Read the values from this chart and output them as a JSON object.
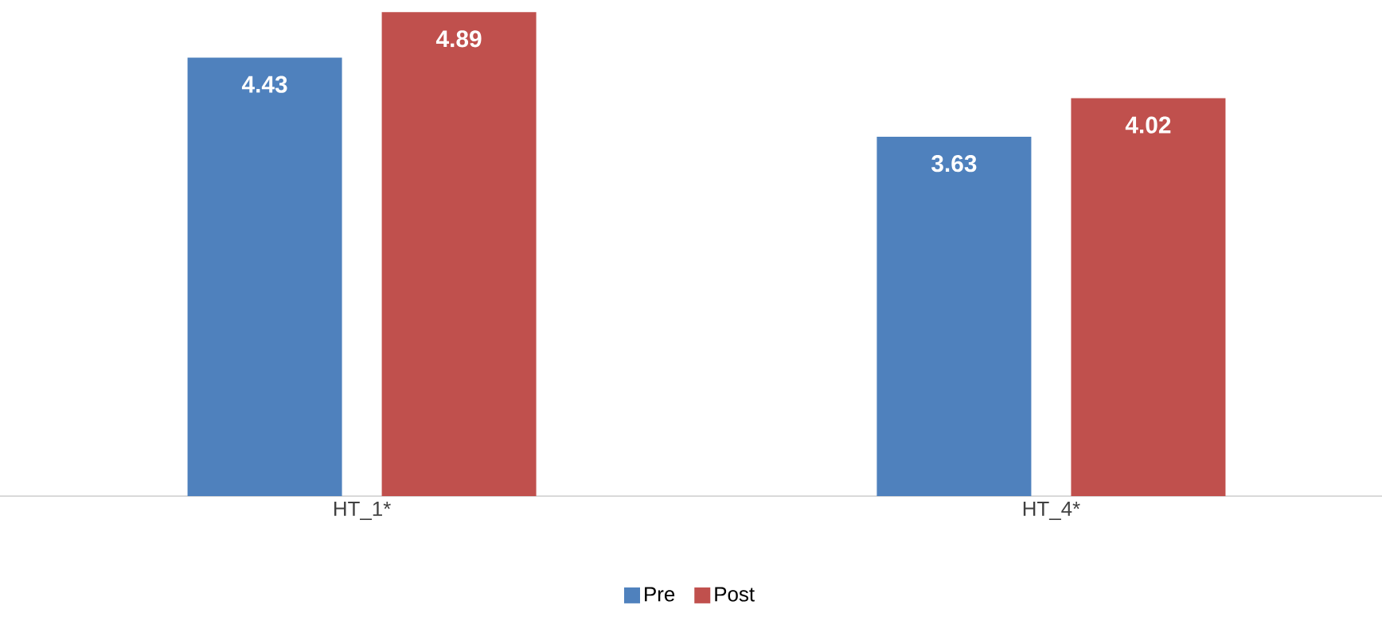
{
  "chart_data": {
    "type": "bar",
    "categories": [
      "HT_1*",
      "HT_4*"
    ],
    "series": [
      {
        "name": "Pre",
        "color": "#4f81bd",
        "values": [
          4.43,
          3.63
        ]
      },
      {
        "name": "Post",
        "color": "#c0504d",
        "values": [
          4.89,
          4.02
        ]
      }
    ],
    "tick_labels": "x",
    "data_labels": true,
    "legend": "bottom"
  }
}
